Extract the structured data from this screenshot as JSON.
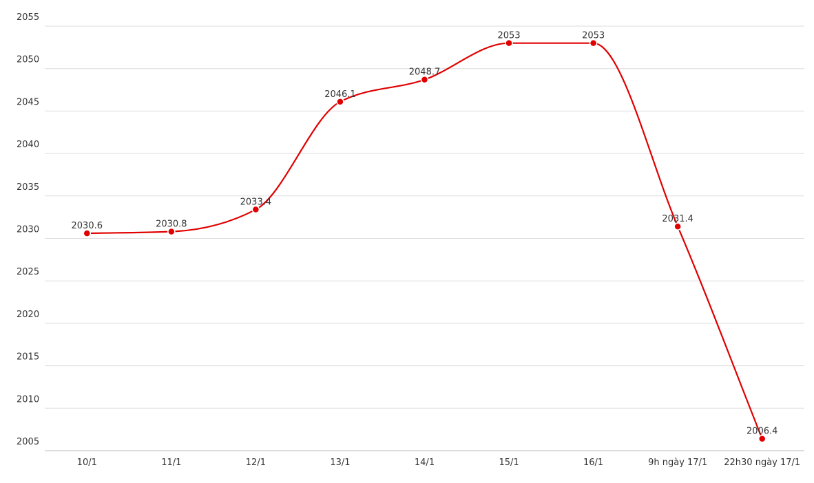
{
  "chart_data": {
    "type": "line",
    "categories": [
      "10/1",
      "11/1",
      "12/1",
      "13/1",
      "14/1",
      "15/1",
      "16/1",
      "9h ngày 17/1",
      "22h30 ngày 17/1"
    ],
    "values": [
      2030.6,
      2030.8,
      2033.4,
      2046.1,
      2048.7,
      2053,
      2053,
      2031.4,
      2006.4
    ],
    "color": "#e00000",
    "ylim": [
      2005,
      2055
    ],
    "yticks": [
      2005,
      2010,
      2015,
      2020,
      2025,
      2030,
      2035,
      2040,
      2045,
      2050,
      2055
    ],
    "grid": true
  }
}
